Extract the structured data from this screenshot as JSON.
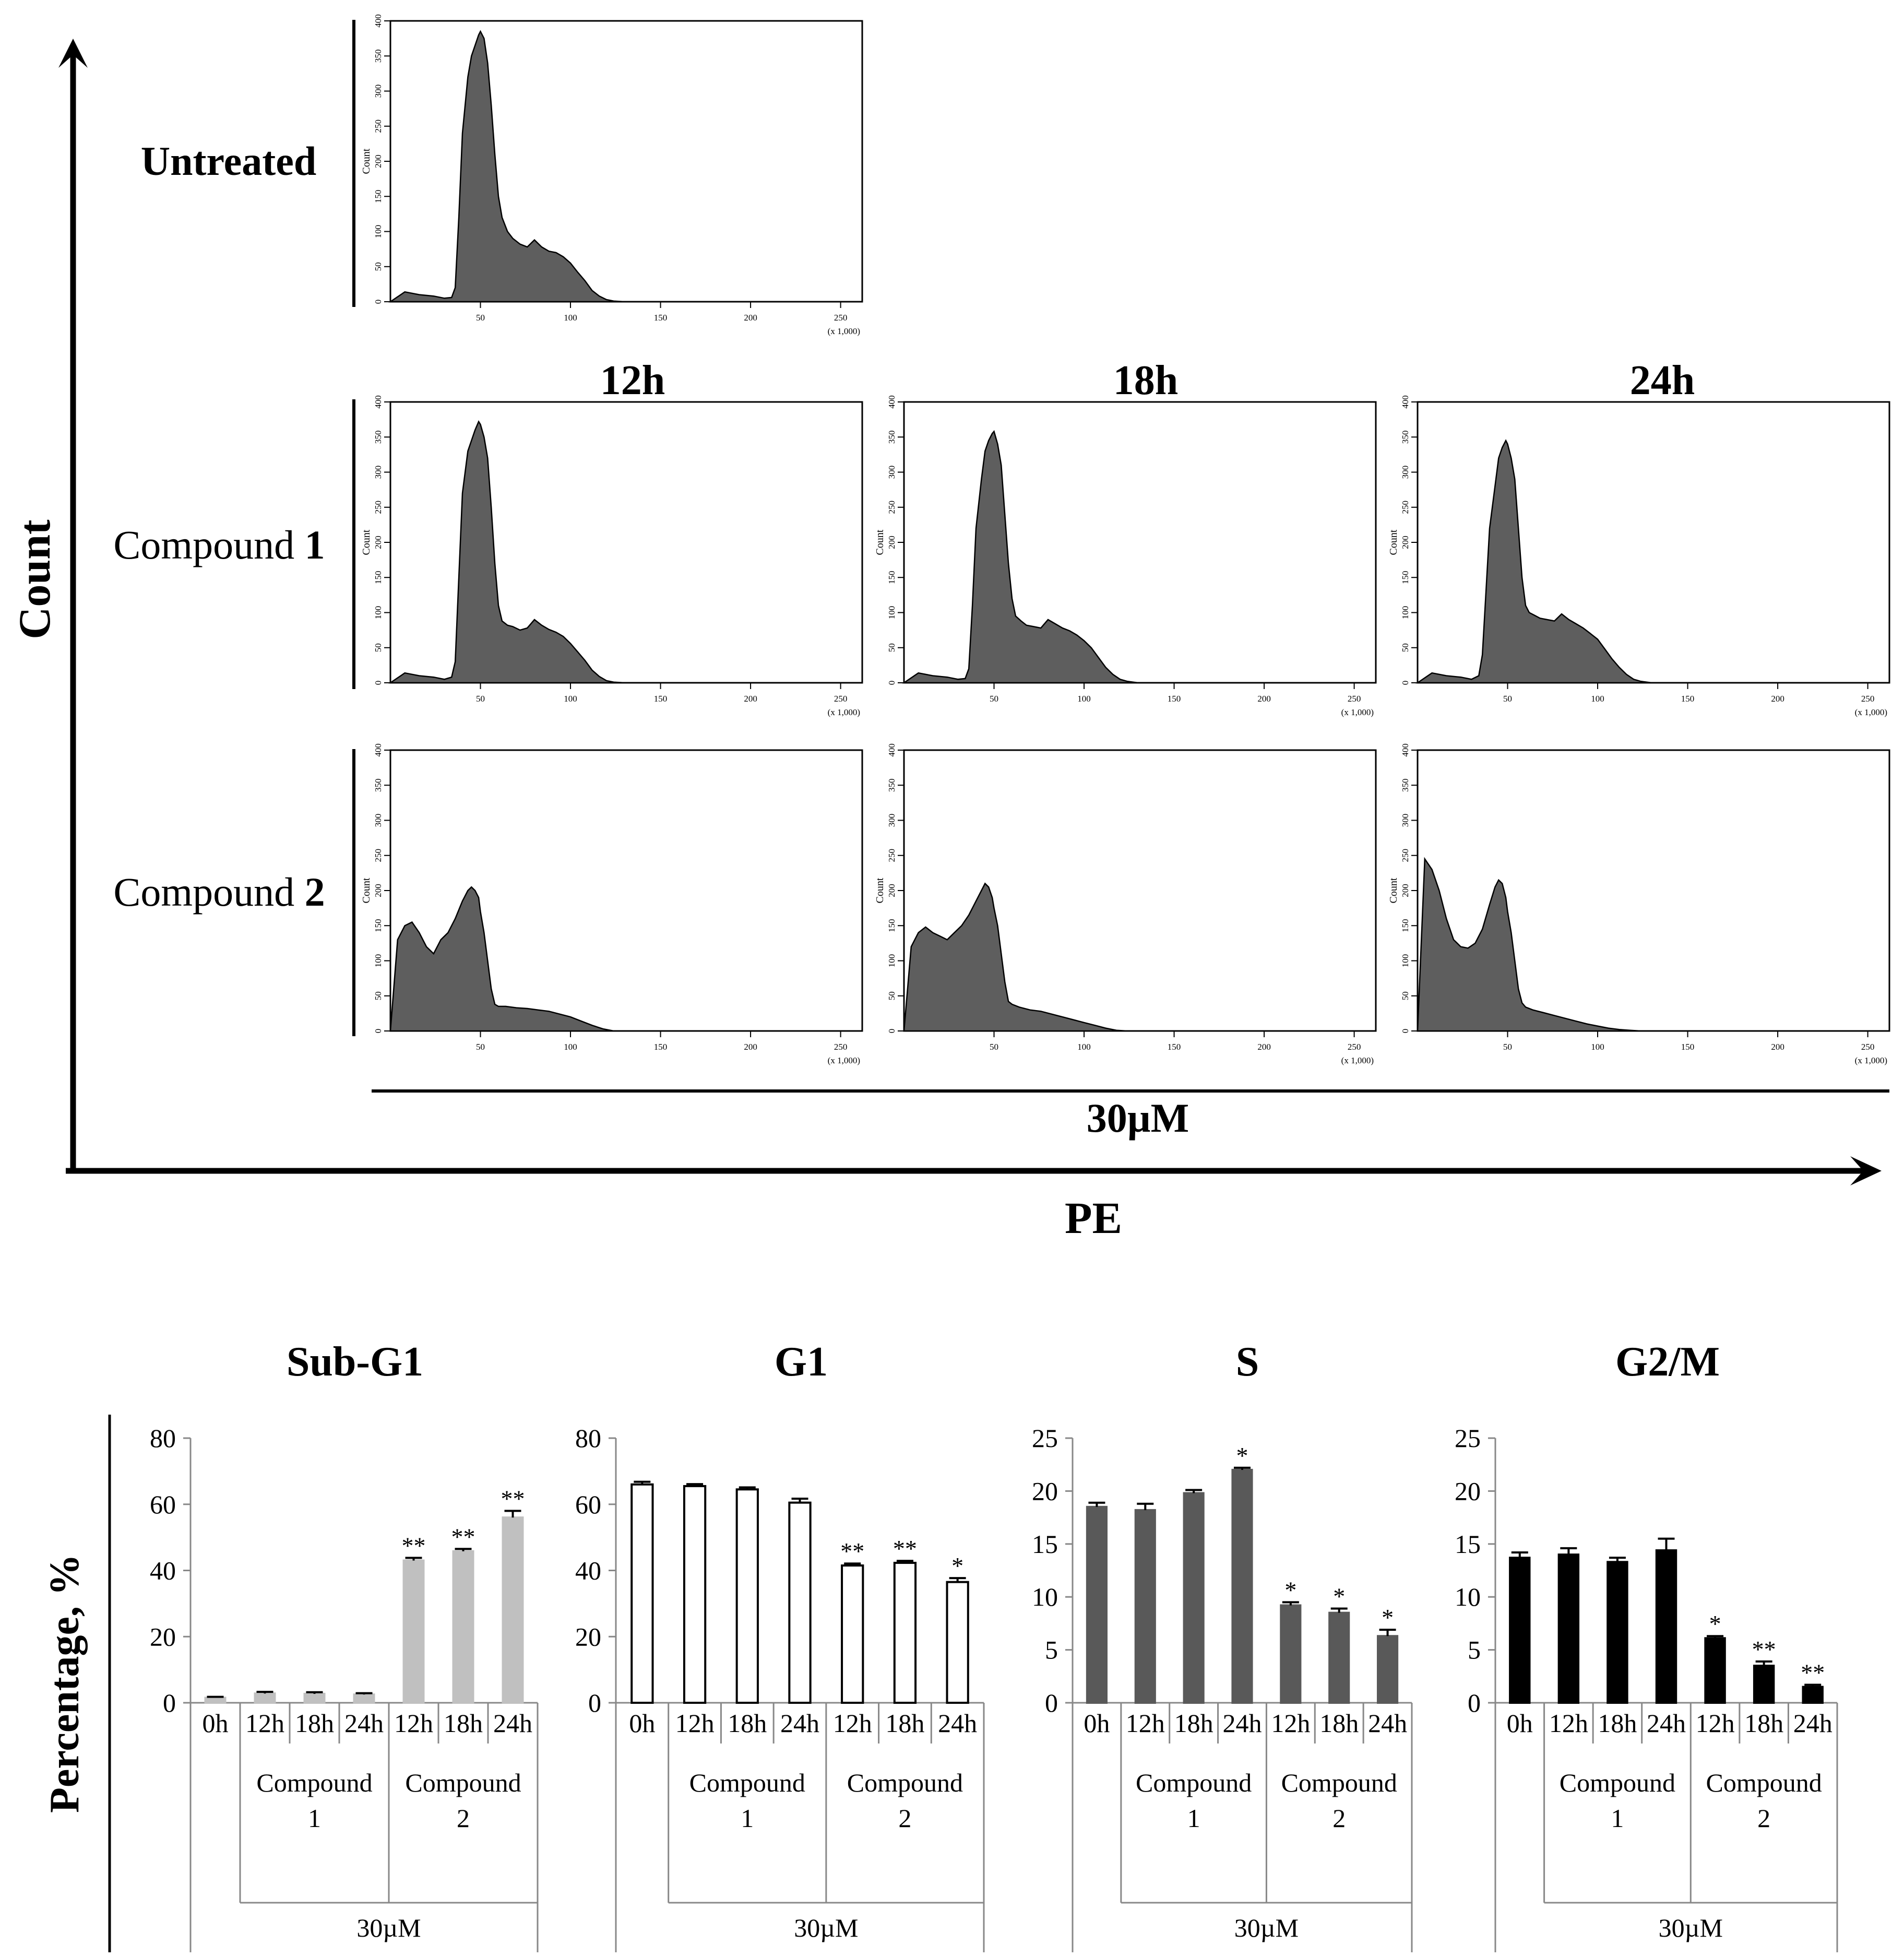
{
  "flow": {
    "y_axis_label": "Count",
    "x_axis_label": "PE",
    "row_labels": [
      "Untreated",
      "Compound ",
      "Compound "
    ],
    "row_label_numbers": [
      "",
      "1",
      "2"
    ],
    "column_labels": [
      "12h",
      "18h",
      "24h"
    ],
    "concentration_label": "30µM",
    "histogram_y_label": "Count",
    "histogram_y_ticks": [
      "0",
      "50",
      "100",
      "150",
      "200",
      "250",
      "300",
      "350",
      "400"
    ],
    "histogram_x_ticks": [
      "50",
      "100",
      "150",
      "200",
      "250"
    ],
    "histogram_x_multiplier": "(x 1,000)"
  },
  "bar_common": {
    "y_axis_label": "Percentage, %",
    "x_labels": [
      "0h",
      "12h",
      "18h",
      "24h",
      "12h",
      "18h",
      "24h"
    ],
    "group_line1": [
      "Compound",
      "Compound"
    ],
    "group_line2": [
      "1",
      "2"
    ],
    "concentration_label": "30µM"
  },
  "chart_data": [
    {
      "type": "area",
      "panel": "Untreated",
      "x_range": [
        0,
        262
      ],
      "y_range": [
        0,
        400
      ],
      "x": [
        0,
        8,
        16,
        24,
        30,
        34,
        36,
        38,
        40,
        43,
        45,
        47,
        49,
        50,
        52,
        54,
        56,
        58,
        60,
        62,
        65,
        68,
        72,
        76,
        80,
        84,
        88,
        92,
        96,
        100,
        104,
        108,
        112,
        116,
        120,
        124,
        130,
        140,
        262
      ],
      "y": [
        0,
        14,
        10,
        8,
        5,
        6,
        20,
        120,
        240,
        320,
        350,
        365,
        380,
        385,
        375,
        340,
        280,
        210,
        150,
        120,
        100,
        90,
        82,
        78,
        88,
        78,
        72,
        70,
        64,
        55,
        42,
        30,
        16,
        8,
        3,
        1,
        0,
        0,
        0
      ]
    },
    {
      "type": "area",
      "panel": "Compound 1 - 12h",
      "x_range": [
        0,
        262
      ],
      "y_range": [
        0,
        400
      ],
      "x": [
        0,
        8,
        16,
        24,
        30,
        34,
        36,
        38,
        40,
        43,
        45,
        47,
        49,
        50,
        52,
        54,
        56,
        58,
        60,
        62,
        65,
        68,
        72,
        76,
        80,
        84,
        88,
        92,
        96,
        100,
        104,
        108,
        112,
        116,
        120,
        124,
        130,
        140,
        262
      ],
      "y": [
        0,
        14,
        10,
        8,
        5,
        8,
        30,
        150,
        270,
        330,
        345,
        360,
        372,
        368,
        350,
        320,
        250,
        170,
        110,
        88,
        82,
        80,
        75,
        78,
        90,
        82,
        76,
        72,
        66,
        56,
        44,
        32,
        18,
        9,
        3,
        1,
        0,
        0,
        0
      ]
    },
    {
      "type": "area",
      "panel": "Compound 1 - 18h",
      "x_range": [
        0,
        262
      ],
      "y_range": [
        0,
        400
      ],
      "x": [
        0,
        8,
        16,
        24,
        30,
        34,
        36,
        38,
        40,
        43,
        45,
        47,
        49,
        50,
        52,
        54,
        56,
        58,
        60,
        62,
        65,
        68,
        72,
        76,
        80,
        84,
        88,
        92,
        96,
        100,
        104,
        108,
        112,
        116,
        120,
        124,
        130,
        140,
        262
      ],
      "y": [
        0,
        14,
        10,
        8,
        5,
        6,
        20,
        110,
        220,
        290,
        330,
        345,
        355,
        358,
        340,
        310,
        240,
        170,
        120,
        95,
        88,
        82,
        80,
        78,
        90,
        84,
        78,
        74,
        68,
        60,
        50,
        36,
        22,
        12,
        5,
        2,
        0,
        0,
        0
      ]
    },
    {
      "type": "area",
      "panel": "Compound 1 - 24h",
      "x_range": [
        0,
        262
      ],
      "y_range": [
        0,
        400
      ],
      "x": [
        0,
        8,
        16,
        24,
        30,
        34,
        36,
        38,
        40,
        43,
        45,
        47,
        49,
        50,
        52,
        54,
        56,
        58,
        60,
        62,
        65,
        68,
        72,
        76,
        80,
        84,
        88,
        92,
        96,
        100,
        104,
        108,
        112,
        116,
        120,
        124,
        130,
        140,
        262
      ],
      "y": [
        0,
        14,
        10,
        8,
        5,
        10,
        40,
        130,
        220,
        280,
        320,
        335,
        345,
        340,
        320,
        290,
        220,
        150,
        110,
        100,
        96,
        92,
        90,
        88,
        98,
        90,
        84,
        78,
        70,
        62,
        48,
        34,
        22,
        12,
        5,
        2,
        0,
        0,
        0
      ]
    },
    {
      "type": "area",
      "panel": "Compound 2 - 12h",
      "x_range": [
        0,
        262
      ],
      "y_range": [
        0,
        400
      ],
      "x": [
        0,
        4,
        8,
        12,
        16,
        20,
        24,
        28,
        32,
        36,
        40,
        43,
        45,
        47,
        49,
        50,
        52,
        54,
        56,
        58,
        60,
        64,
        70,
        76,
        82,
        88,
        94,
        100,
        106,
        112,
        118,
        124,
        262
      ],
      "y": [
        0,
        130,
        150,
        155,
        140,
        120,
        110,
        130,
        140,
        160,
        185,
        200,
        205,
        200,
        190,
        170,
        140,
        100,
        60,
        38,
        35,
        35,
        33,
        32,
        30,
        28,
        24,
        20,
        14,
        8,
        3,
        0,
        0
      ]
    },
    {
      "type": "area",
      "panel": "Compound 2 - 18h",
      "x_range": [
        0,
        262
      ],
      "y_range": [
        0,
        400
      ],
      "x": [
        0,
        4,
        8,
        12,
        16,
        20,
        24,
        28,
        32,
        36,
        40,
        43,
        45,
        47,
        49,
        50,
        52,
        54,
        56,
        58,
        60,
        64,
        70,
        76,
        82,
        88,
        94,
        100,
        106,
        112,
        118,
        124,
        262
      ],
      "y": [
        0,
        120,
        140,
        148,
        140,
        135,
        130,
        140,
        150,
        165,
        185,
        200,
        210,
        205,
        190,
        175,
        150,
        110,
        70,
        42,
        38,
        34,
        30,
        28,
        24,
        20,
        16,
        12,
        8,
        4,
        1,
        0,
        0
      ]
    },
    {
      "type": "area",
      "panel": "Compound 2 - 24h",
      "x_range": [
        0,
        262
      ],
      "y_range": [
        0,
        400
      ],
      "x": [
        0,
        4,
        8,
        12,
        16,
        20,
        24,
        28,
        32,
        36,
        40,
        43,
        45,
        47,
        49,
        50,
        52,
        54,
        56,
        58,
        60,
        64,
        70,
        76,
        82,
        88,
        94,
        100,
        106,
        112,
        118,
        124,
        262
      ],
      "y": [
        0,
        245,
        230,
        200,
        160,
        130,
        120,
        118,
        125,
        145,
        180,
        205,
        215,
        210,
        190,
        170,
        140,
        100,
        60,
        40,
        34,
        30,
        26,
        22,
        18,
        14,
        10,
        7,
        4,
        2,
        1,
        0,
        0
      ]
    },
    {
      "type": "bar",
      "title": "Sub-G1",
      "color": "#c0c0c0",
      "ylim": [
        0,
        80
      ],
      "yticks": [
        0,
        20,
        40,
        60,
        80
      ],
      "values": [
        1.5,
        2.8,
        2.7,
        2.5,
        43.0,
        45.8,
        56.0
      ],
      "errors": [
        0.3,
        0.5,
        0.5,
        0.4,
        0.8,
        0.7,
        2.0
      ],
      "annotations": [
        "",
        "",
        "",
        "",
        "**",
        "**",
        "**"
      ]
    },
    {
      "type": "bar",
      "title": "G1",
      "color": "#ffffff",
      "ylim": [
        0,
        80
      ],
      "yticks": [
        0,
        20,
        40,
        60,
        80
      ],
      "values": [
        66.0,
        65.5,
        64.5,
        60.5,
        41.5,
        42.3,
        36.5
      ],
      "errors": [
        0.8,
        0.6,
        0.6,
        1.2,
        0.6,
        0.6,
        1.2
      ],
      "annotations": [
        "",
        "",
        "",
        "",
        "**",
        "**",
        "*"
      ]
    },
    {
      "type": "bar",
      "title": "S",
      "color": "#595959",
      "ylim": [
        0,
        25
      ],
      "yticks": [
        0,
        5,
        10,
        15,
        20,
        25
      ],
      "values": [
        18.5,
        18.2,
        19.8,
        22.0,
        9.2,
        8.5,
        6.3
      ],
      "errors": [
        0.4,
        0.6,
        0.3,
        0.2,
        0.3,
        0.4,
        0.6
      ],
      "annotations": [
        "",
        "",
        "",
        "*",
        "*",
        "*",
        "*"
      ]
    },
    {
      "type": "bar",
      "title": "G2/M",
      "color": "#000000",
      "ylim": [
        0,
        25
      ],
      "yticks": [
        0,
        5,
        10,
        15,
        20,
        25
      ],
      "values": [
        13.7,
        14.0,
        13.3,
        14.4,
        6.1,
        3.5,
        1.5
      ],
      "errors": [
        0.5,
        0.6,
        0.4,
        1.1,
        0.2,
        0.4,
        0.2
      ],
      "annotations": [
        "",
        "",
        "",
        "",
        "*",
        "**",
        "**"
      ]
    }
  ]
}
